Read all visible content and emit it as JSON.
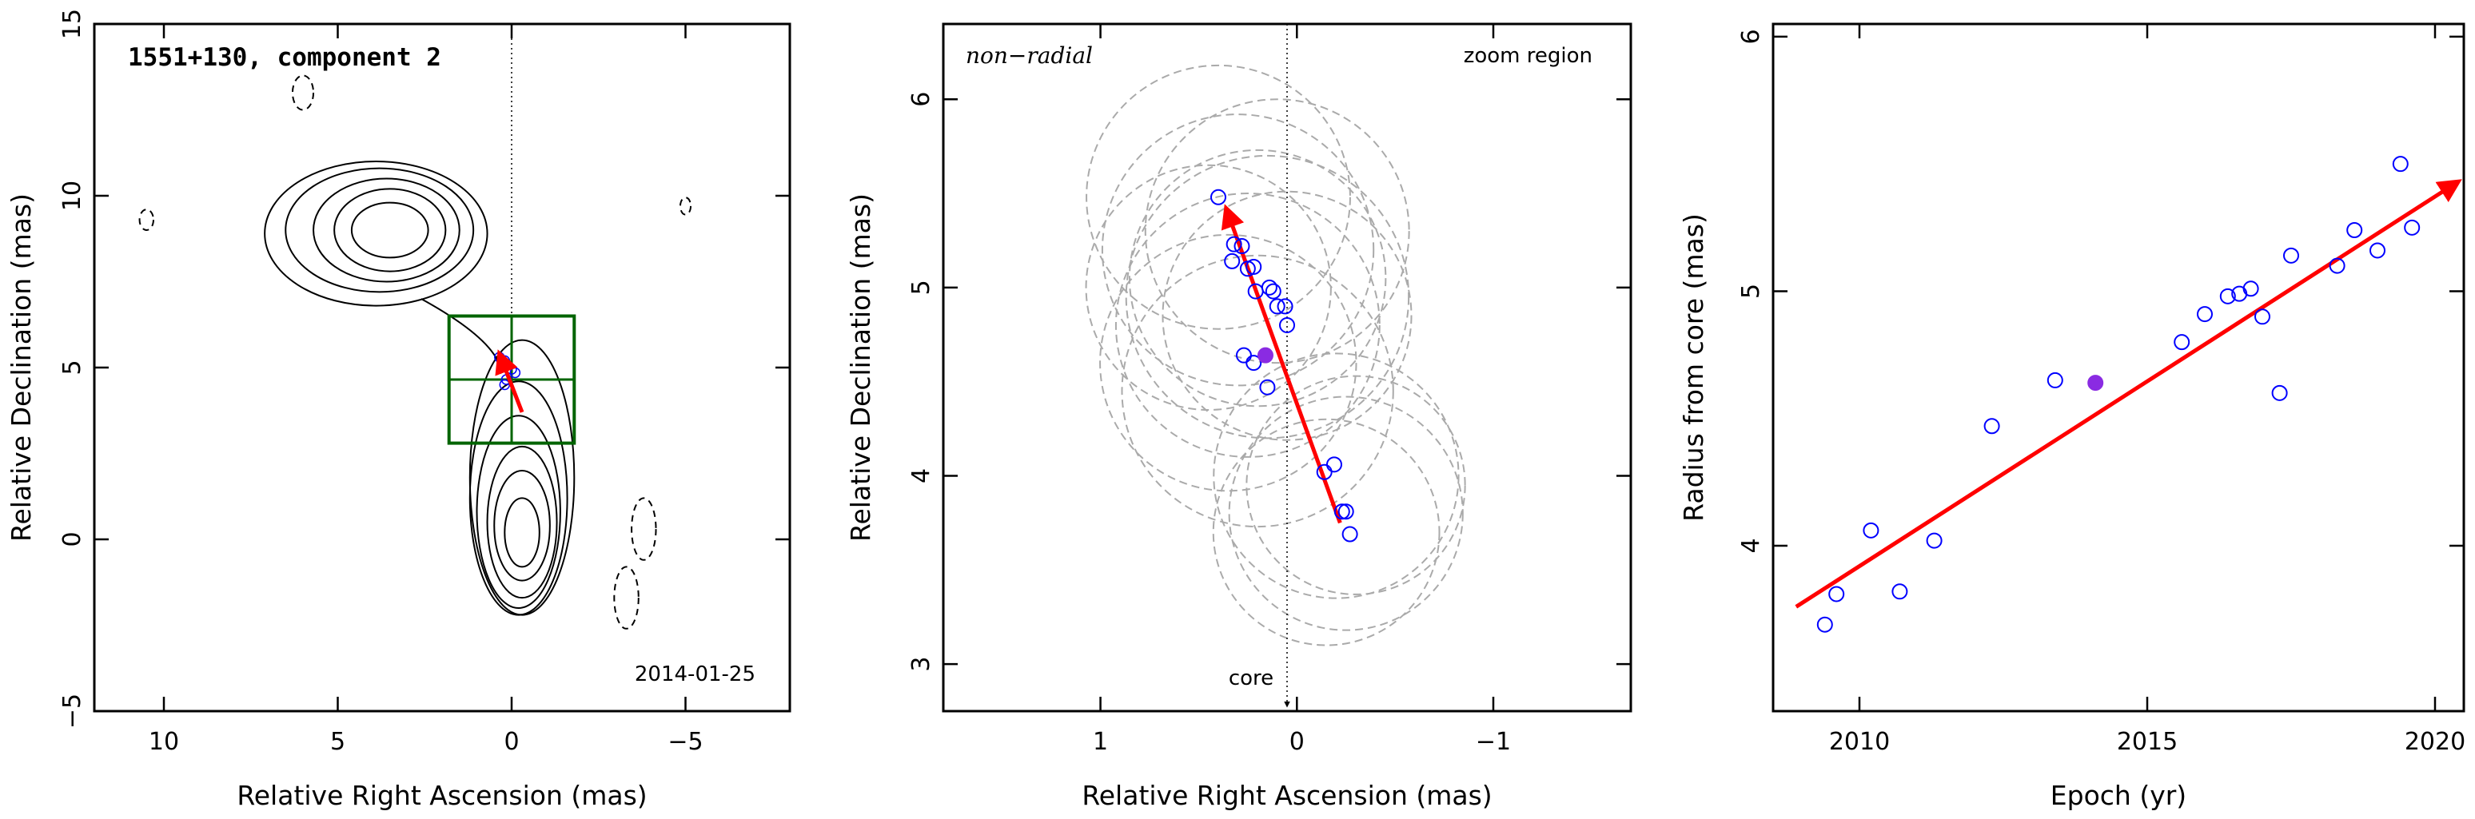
{
  "chart_data": [
    {
      "type": "contour",
      "title": "1551+130, component 2",
      "annotation": "2014-01-25",
      "xlabel": "Relative Right Ascension (mas)",
      "ylabel": "Relative Declination (mas)",
      "xlim": [
        12,
        -8
      ],
      "ylim": [
        -5,
        15
      ],
      "xticks": [
        10,
        5,
        0,
        -5
      ],
      "yticks": [
        -5,
        0,
        5,
        10,
        15
      ],
      "core_line_x": 0,
      "zoom_box": {
        "x_range": [
          1.8,
          -1.8
        ],
        "y_range": [
          2.8,
          6.5
        ],
        "midline_y": 4.65
      },
      "positions": [
        {
          "x": 0.35,
          "y": 5.3
        },
        {
          "x": 0.2,
          "y": 5.2
        },
        {
          "x": 0.0,
          "y": 4.95
        },
        {
          "x": -0.1,
          "y": 4.85
        },
        {
          "x": 0.15,
          "y": 4.65
        },
        {
          "x": 0.2,
          "y": 4.5
        }
      ],
      "arrow": {
        "from": [
          -0.3,
          3.7
        ],
        "to": [
          0.35,
          5.4
        ],
        "color": "#ff0000"
      }
    },
    {
      "type": "scatter",
      "label_left": "non−radial",
      "label_right": "zoom region",
      "core_label": "core",
      "xlabel": "Relative Right Ascension (mas)",
      "ylabel": "Relative Declination (mas)",
      "xlim": [
        1.8,
        -1.7
      ],
      "ylim": [
        2.75,
        6.4
      ],
      "xticks": [
        1,
        0,
        -1
      ],
      "yticks": [
        3,
        4,
        5,
        6
      ],
      "core_line_x": 0.05,
      "points": [
        {
          "x": 0.4,
          "y": 5.48
        },
        {
          "x": 0.32,
          "y": 5.23
        },
        {
          "x": 0.28,
          "y": 5.22
        },
        {
          "x": 0.33,
          "y": 5.14
        },
        {
          "x": 0.25,
          "y": 5.1
        },
        {
          "x": 0.22,
          "y": 5.11
        },
        {
          "x": 0.21,
          "y": 4.98
        },
        {
          "x": 0.14,
          "y": 5.0
        },
        {
          "x": 0.12,
          "y": 4.98
        },
        {
          "x": 0.1,
          "y": 4.9
        },
        {
          "x": 0.06,
          "y": 4.9
        },
        {
          "x": 0.05,
          "y": 4.8
        },
        {
          "x": 0.27,
          "y": 4.64
        },
        {
          "x": 0.22,
          "y": 4.6
        },
        {
          "x": 0.15,
          "y": 4.47
        },
        {
          "x": -0.14,
          "y": 4.02
        },
        {
          "x": -0.19,
          "y": 4.06
        },
        {
          "x": -0.23,
          "y": 3.81
        },
        {
          "x": -0.25,
          "y": 3.81
        },
        {
          "x": -0.27,
          "y": 3.69
        }
      ],
      "mean_point": {
        "x": 0.16,
        "y": 4.64
      },
      "beam_circles": [
        {
          "x": 0.4,
          "y": 5.48,
          "r": 0.7
        },
        {
          "x": 0.3,
          "y": 5.2,
          "r": 0.72
        },
        {
          "x": 0.2,
          "y": 5.05,
          "r": 0.68
        },
        {
          "x": 0.15,
          "y": 4.95,
          "r": 0.75
        },
        {
          "x": 0.25,
          "y": 4.8,
          "r": 0.7
        },
        {
          "x": 0.05,
          "y": 4.85,
          "r": 0.66
        },
        {
          "x": 0.35,
          "y": 4.6,
          "r": 0.68
        },
        {
          "x": 0.1,
          "y": 5.3,
          "r": 0.7
        },
        {
          "x": 0.2,
          "y": 4.45,
          "r": 0.72
        },
        {
          "x": 0.45,
          "y": 5.0,
          "r": 0.65
        },
        {
          "x": -0.2,
          "y": 4.0,
          "r": 0.65
        },
        {
          "x": -0.25,
          "y": 3.8,
          "r": 0.62
        },
        {
          "x": -0.15,
          "y": 3.7,
          "r": 0.6
        },
        {
          "x": -0.3,
          "y": 3.95,
          "r": 0.58
        }
      ],
      "arrow": {
        "from": [
          -0.22,
          3.75
        ],
        "to": [
          0.36,
          5.42
        ],
        "color": "#ff0000"
      }
    },
    {
      "type": "scatter",
      "xlabel": "Epoch (yr)",
      "ylabel": "Radius from core (mas)",
      "xlim": [
        2008.5,
        2020.5
      ],
      "ylim": [
        3.35,
        6.05
      ],
      "xticks": [
        2010,
        2015,
        2020
      ],
      "yticks": [
        4,
        5,
        6
      ],
      "points": [
        {
          "x": 2009.4,
          "y": 3.69
        },
        {
          "x": 2009.6,
          "y": 3.81
        },
        {
          "x": 2010.2,
          "y": 4.06
        },
        {
          "x": 2010.7,
          "y": 3.82
        },
        {
          "x": 2011.3,
          "y": 4.02
        },
        {
          "x": 2012.3,
          "y": 4.47
        },
        {
          "x": 2013.4,
          "y": 4.65
        },
        {
          "x": 2015.6,
          "y": 4.8
        },
        {
          "x": 2016.0,
          "y": 4.91
        },
        {
          "x": 2016.4,
          "y": 4.98
        },
        {
          "x": 2016.6,
          "y": 4.99
        },
        {
          "x": 2016.8,
          "y": 5.01
        },
        {
          "x": 2017.0,
          "y": 4.9
        },
        {
          "x": 2017.3,
          "y": 4.6
        },
        {
          "x": 2017.5,
          "y": 5.14
        },
        {
          "x": 2018.3,
          "y": 5.1
        },
        {
          "x": 2018.6,
          "y": 5.24
        },
        {
          "x": 2019.0,
          "y": 5.16
        },
        {
          "x": 2019.4,
          "y": 5.5
        },
        {
          "x": 2019.6,
          "y": 5.25
        }
      ],
      "mean_point": {
        "x": 2014.1,
        "y": 4.64
      },
      "fit_arrow": {
        "from": [
          2008.9,
          3.76
        ],
        "to": [
          2020.4,
          5.43
        ],
        "color": "#ff0000"
      }
    }
  ]
}
